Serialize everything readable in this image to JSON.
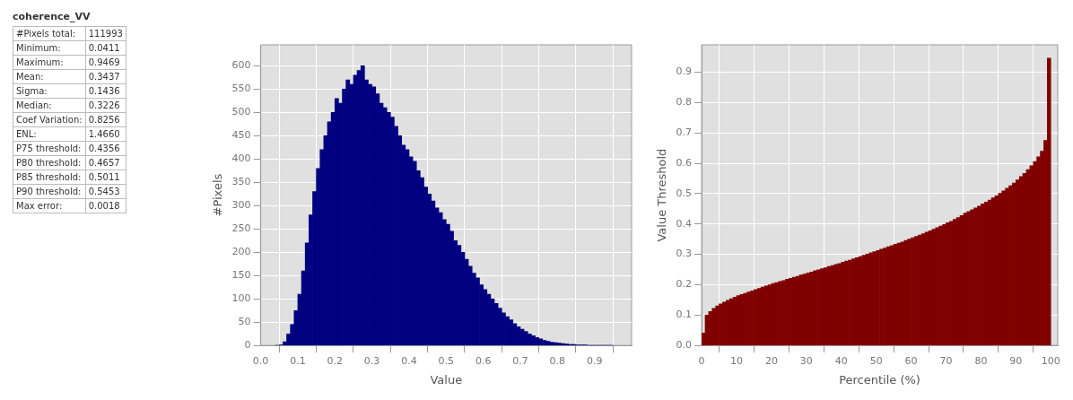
{
  "chart_data": [
    {
      "type": "other",
      "title": "coherence_VV",
      "annotations": [
        "#Pixels total:",
        "111993",
        "Minimum:",
        "0.0411",
        "Maximum:",
        "0.9469",
        "Mean:",
        "0.3437",
        "Sigma:",
        "0.1436",
        "Median:",
        "0.3226",
        "Coef Variation:",
        "0.8256",
        "ENL:",
        "1.4660",
        "P75 threshold:",
        "0.4356",
        "P80 threshold:",
        "0.4657",
        "P85 threshold:",
        "0.5011",
        "P90 threshold:",
        "0.5453",
        "Max error:",
        "0.0018"
      ]
    },
    {
      "type": "histogram",
      "xlabel": "Value",
      "ylabel": "#Pixels",
      "color": "#000080",
      "grid": true,
      "bins": [
        0.04,
        0.05,
        0.06,
        0.07,
        0.08,
        0.09,
        0.1,
        0.11,
        0.12,
        0.13,
        0.14,
        0.15,
        0.16,
        0.17,
        0.18,
        0.19,
        0.2,
        0.21,
        0.22,
        0.23,
        0.24,
        0.25,
        0.26,
        0.27,
        0.28,
        0.29,
        0.3,
        0.31,
        0.32,
        0.33,
        0.34,
        0.35,
        0.36,
        0.37,
        0.38,
        0.39,
        0.4,
        0.41,
        0.42,
        0.43,
        0.44,
        0.45,
        0.46,
        0.47,
        0.48,
        0.49,
        0.5,
        0.51,
        0.52,
        0.53,
        0.54,
        0.55,
        0.56,
        0.57,
        0.58,
        0.59,
        0.6,
        0.61,
        0.62,
        0.63,
        0.64,
        0.65,
        0.66,
        0.67,
        0.68,
        0.69,
        0.7,
        0.71,
        0.72,
        0.73,
        0.74,
        0.75,
        0.76,
        0.77,
        0.78,
        0.79,
        0.8,
        0.81,
        0.82,
        0.83,
        0.84,
        0.85,
        0.86,
        0.87,
        0.88,
        0.89,
        0.9,
        0.91,
        0.92,
        0.93,
        0.94,
        0.95
      ],
      "values": [
        0,
        1,
        8,
        25,
        45,
        75,
        110,
        160,
        220,
        280,
        330,
        380,
        420,
        450,
        480,
        500,
        530,
        520,
        550,
        570,
        560,
        580,
        590,
        600,
        570,
        560,
        555,
        540,
        520,
        510,
        500,
        490,
        470,
        450,
        430,
        420,
        405,
        395,
        375,
        360,
        340,
        325,
        310,
        295,
        285,
        270,
        260,
        245,
        225,
        215,
        200,
        185,
        170,
        155,
        145,
        130,
        120,
        110,
        100,
        90,
        80,
        70,
        62,
        55,
        47,
        40,
        35,
        30,
        25,
        21,
        17,
        14,
        11,
        9,
        7,
        6,
        5,
        4,
        3,
        2,
        2,
        1,
        1,
        1,
        0,
        0,
        0,
        0,
        0,
        0,
        0
      ],
      "xlim": [
        0,
        1
      ],
      "xticks": [
        {
          "value": 0,
          "label": "0.0"
        },
        0.1,
        0.2,
        0.3,
        0.4,
        0.5,
        0.6,
        0.7,
        0.8,
        0.9
      ],
      "ylim": [
        0,
        645
      ],
      "yticks": [
        0,
        50,
        100,
        150,
        200,
        250,
        300,
        350,
        400,
        450,
        500,
        550,
        600
      ]
    },
    {
      "type": "bar",
      "xlabel": "Percentile (%)",
      "ylabel": "Value Threshold",
      "color": "#800000",
      "grid": true,
      "x": [
        0.5,
        1.5,
        2.5,
        3.5,
        4.5,
        5.5,
        6.5,
        7.5,
        8.5,
        9.5,
        10.5,
        11.5,
        12.5,
        13.5,
        14.5,
        15.5,
        16.5,
        17.5,
        18.5,
        19.5,
        20.5,
        21.5,
        22.5,
        23.5,
        24.5,
        25.5,
        26.5,
        27.5,
        28.5,
        29.5,
        30.5,
        31.5,
        32.5,
        33.5,
        34.5,
        35.5,
        36.5,
        37.5,
        38.5,
        39.5,
        40.5,
        41.5,
        42.5,
        43.5,
        44.5,
        45.5,
        46.5,
        47.5,
        48.5,
        49.5,
        50.5,
        51.5,
        52.5,
        53.5,
        54.5,
        55.5,
        56.5,
        57.5,
        58.5,
        59.5,
        60.5,
        61.5,
        62.5,
        63.5,
        64.5,
        65.5,
        66.5,
        67.5,
        68.5,
        69.5,
        70.5,
        71.5,
        72.5,
        73.5,
        74.5,
        75.5,
        76.5,
        77.5,
        78.5,
        79.5,
        80.5,
        81.5,
        82.5,
        83.5,
        84.5,
        85.5,
        86.5,
        87.5,
        88.5,
        89.5,
        90.5,
        91.5,
        92.5,
        93.5,
        94.5,
        95.5,
        96.5,
        97.5,
        98.5,
        99.5
      ],
      "values": [
        0.041,
        0.1,
        0.112,
        0.122,
        0.13,
        0.137,
        0.143,
        0.149,
        0.154,
        0.159,
        0.164,
        0.168,
        0.172,
        0.176,
        0.18,
        0.184,
        0.188,
        0.192,
        0.196,
        0.2,
        0.204,
        0.207,
        0.211,
        0.214,
        0.218,
        0.221,
        0.225,
        0.228,
        0.232,
        0.235,
        0.239,
        0.242,
        0.246,
        0.249,
        0.253,
        0.256,
        0.26,
        0.263,
        0.267,
        0.27,
        0.274,
        0.278,
        0.281,
        0.285,
        0.289,
        0.293,
        0.297,
        0.301,
        0.305,
        0.309,
        0.313,
        0.317,
        0.321,
        0.325,
        0.329,
        0.333,
        0.337,
        0.341,
        0.346,
        0.35,
        0.355,
        0.359,
        0.364,
        0.368,
        0.373,
        0.378,
        0.383,
        0.388,
        0.393,
        0.398,
        0.404,
        0.409,
        0.415,
        0.421,
        0.428,
        0.436,
        0.441,
        0.447,
        0.453,
        0.459,
        0.466,
        0.472,
        0.479,
        0.486,
        0.493,
        0.501,
        0.509,
        0.518,
        0.526,
        0.535,
        0.545,
        0.556,
        0.567,
        0.579,
        0.592,
        0.606,
        0.621,
        0.64,
        0.675,
        0.946
      ],
      "xlim": [
        0,
        102
      ],
      "xticks": [
        0,
        10,
        20,
        30,
        40,
        50,
        60,
        70,
        80,
        90,
        100
      ],
      "ylim": [
        0,
        0.99
      ],
      "yticks": [
        {
          "value": 0,
          "label": "0.0"
        },
        0.1,
        0.2,
        0.3,
        0.4,
        0.5,
        0.6,
        0.7,
        0.8,
        0.9
      ]
    }
  ]
}
